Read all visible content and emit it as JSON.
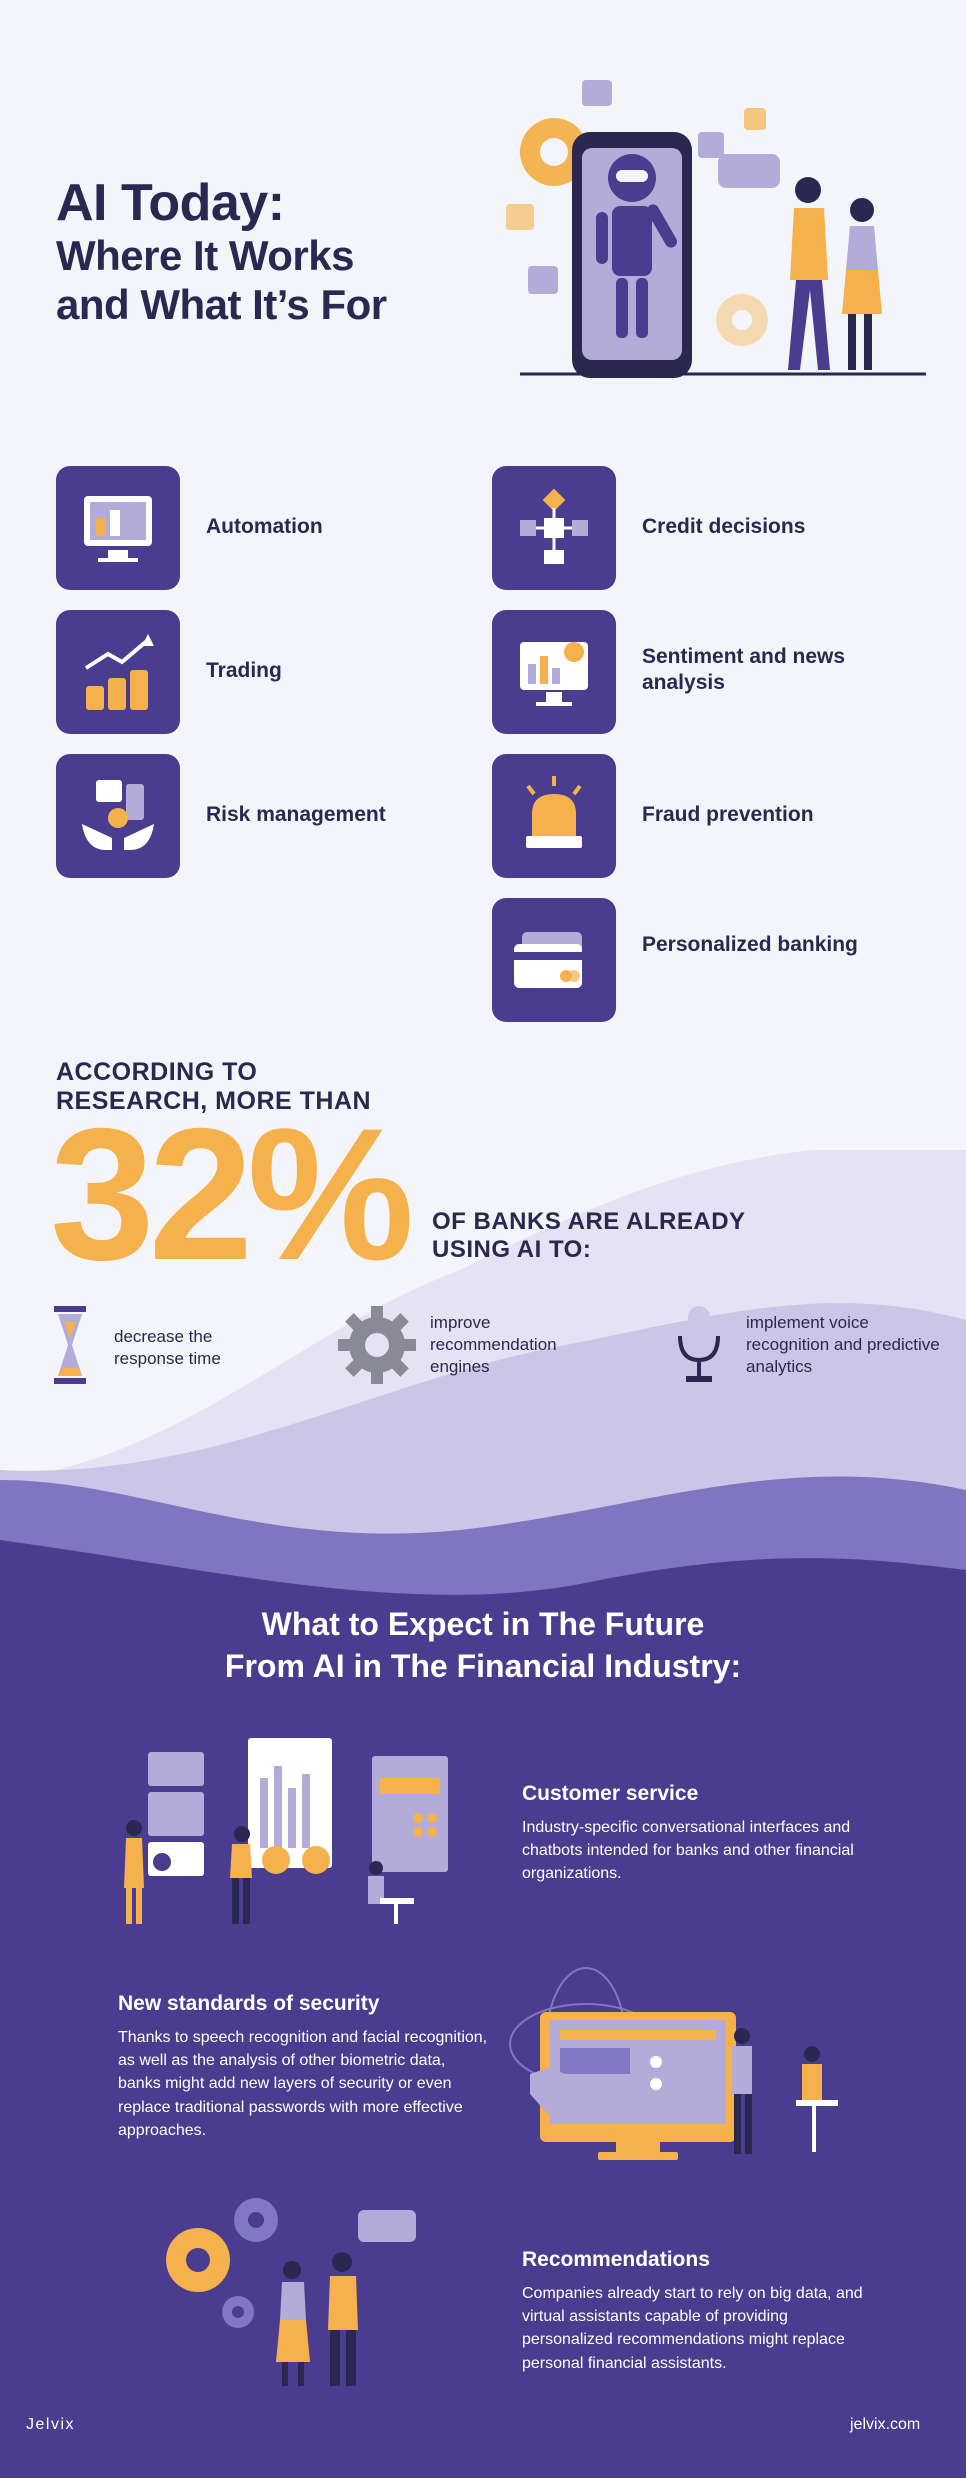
{
  "hero": {
    "title_line1": "AI Today:",
    "title_line2": "Where It Works",
    "title_line3": "and What It’s For"
  },
  "use_cases": {
    "left": [
      {
        "label": "Automation",
        "icon": "monitor-dashboard-icon"
      },
      {
        "label": "Trading",
        "icon": "coin-stacks-growth-icon"
      },
      {
        "label": "Risk management",
        "icon": "hands-shield-icon"
      }
    ],
    "right": [
      {
        "label": "Credit decisions",
        "icon": "decision-flowchart-icon"
      },
      {
        "label": "Sentiment and news analysis",
        "icon": "analytics-monitor-icon"
      },
      {
        "label": "Fraud prevention",
        "icon": "alarm-siren-icon"
      },
      {
        "label": "Personalized banking",
        "icon": "credit-card-icon"
      }
    ]
  },
  "stats": {
    "research": "According to research, more than",
    "percent": "32%",
    "banks": "of banks are already using AI to:",
    "items": [
      {
        "text": "decrease the response time",
        "icon": "hourglass-icon"
      },
      {
        "text": "improve recommendation engines",
        "icon": "gear-icon"
      },
      {
        "text": "implement voice recognition and predictive analytics",
        "icon": "microphone-icon"
      }
    ]
  },
  "future": {
    "title_line1": "What to Expect in The Future",
    "title_line2": "From AI in The Financial Industry:",
    "features": [
      {
        "heading": "Customer service",
        "text": "Industry-specific conversational interfaces and chatbots intended for banks and other financial organizations."
      },
      {
        "heading": "New standards of security",
        "text": "Thanks to speech recognition and facial recognition, as well as the analysis of other biometric data, banks might add new layers of security or even replace traditional passwords with more effective approaches."
      },
      {
        "heading": "Recommendations",
        "text": "Companies already start to rely on big data, and virtual assistants capable of providing personalized recommendations might replace personal financial assistants."
      }
    ]
  },
  "footer": {
    "brand": "Jelvix",
    "site": "jelvix.com"
  },
  "colors": {
    "navy": "#2a2850",
    "purple": "#4a3d8f",
    "orange": "#f5b14c",
    "lavender": "#b3abd8",
    "background": "#f4f5fa"
  }
}
